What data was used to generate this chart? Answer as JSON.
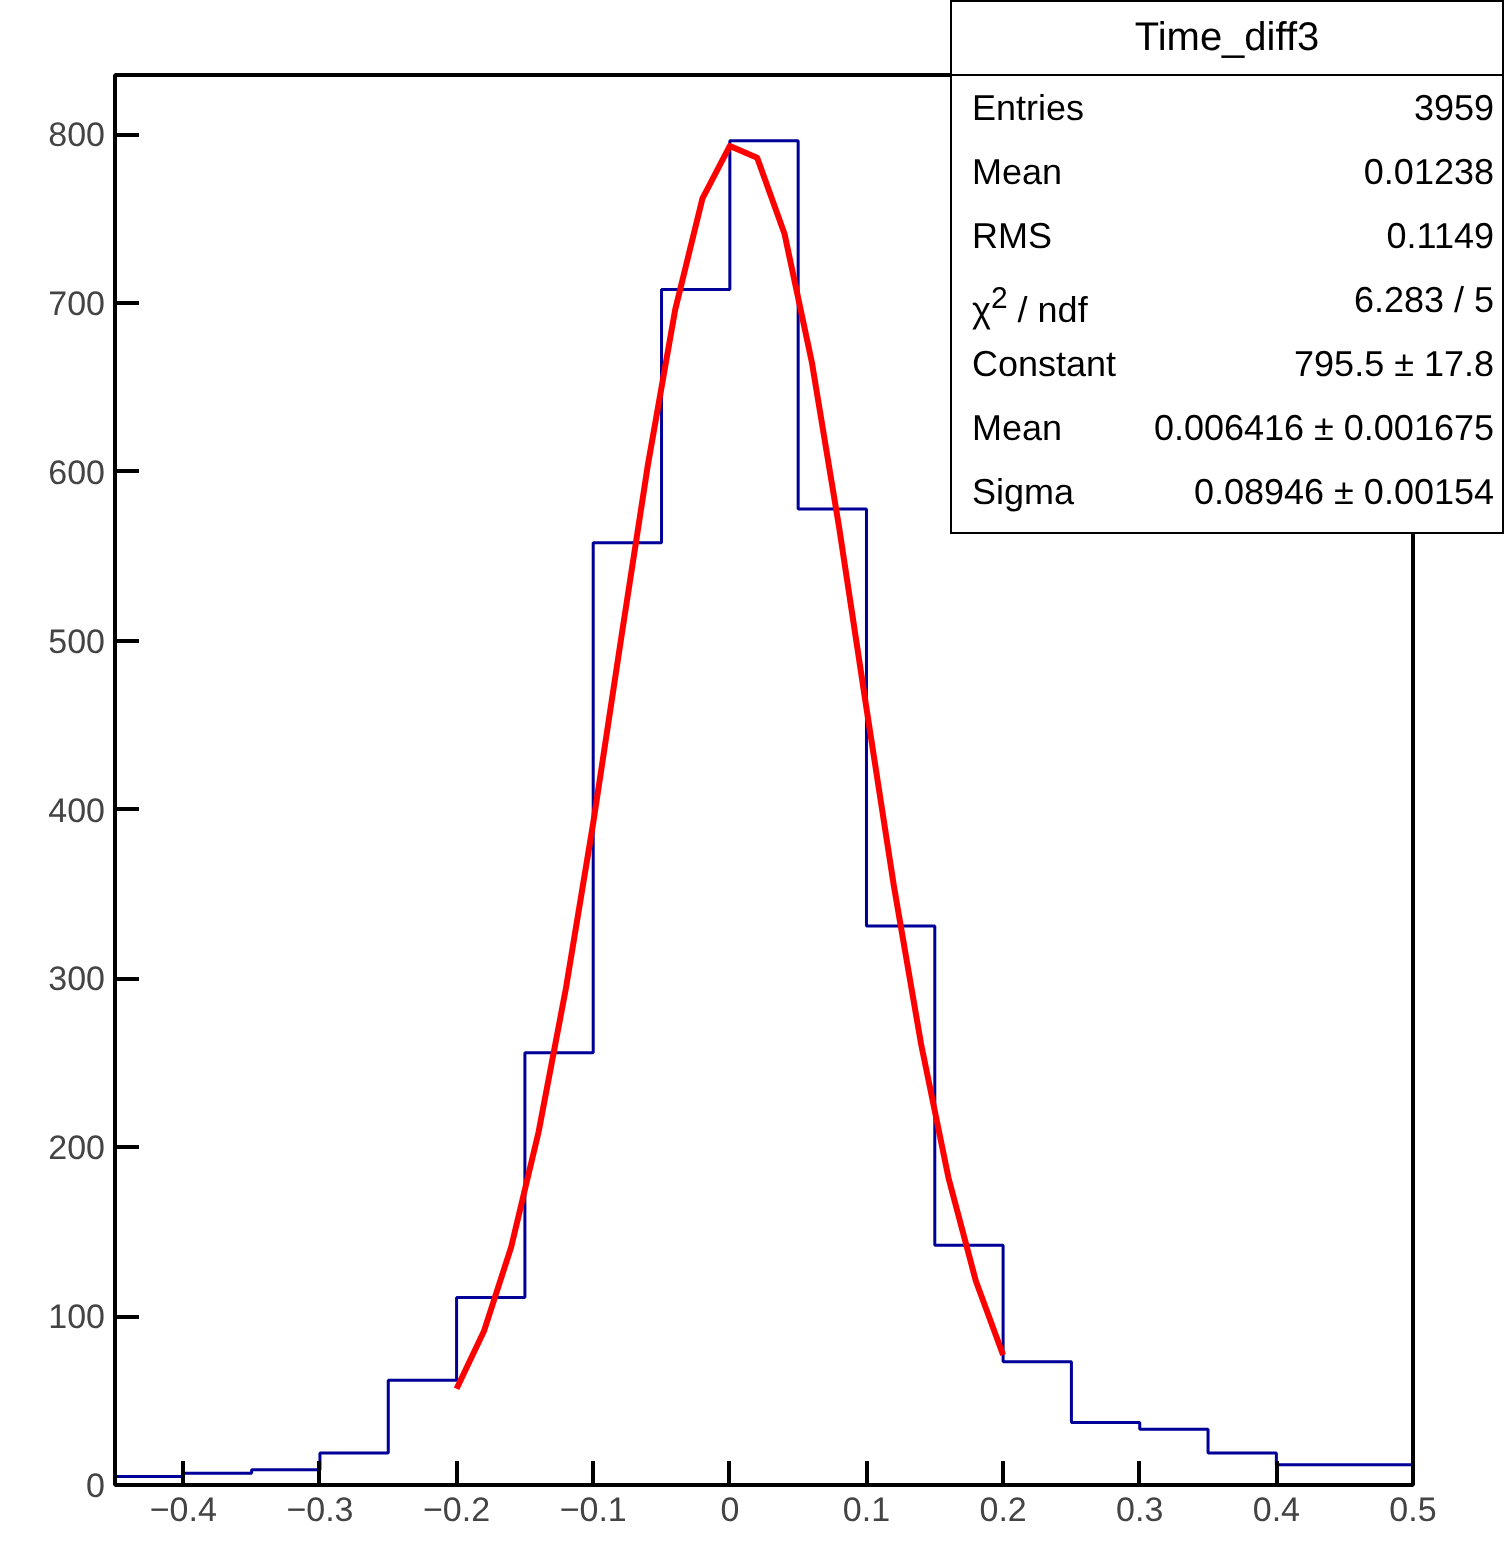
{
  "chart_data": {
    "type": "histogram",
    "title": "Time_diff3",
    "bins": [
      -0.45,
      -0.4,
      -0.35,
      -0.3,
      -0.25,
      -0.2,
      -0.15,
      -0.1,
      -0.05,
      0,
      0.05,
      0.1,
      0.15,
      0.2,
      0.25,
      0.3,
      0.35,
      0.4,
      0.45,
      0.5
    ],
    "values": [
      5,
      7,
      9,
      19,
      62,
      111,
      256,
      558,
      708,
      796,
      578,
      331,
      142,
      73,
      37,
      33,
      19,
      12,
      12
    ],
    "color": "#000099",
    "series": [
      {
        "type": "line",
        "color": "#ff0000",
        "x": [
          -0.2,
          -0.18,
          -0.16,
          -0.14,
          -0.12,
          -0.1,
          -0.08,
          -0.06,
          -0.04,
          -0.02,
          0,
          0.02,
          0.04,
          0.06,
          0.08,
          0.1,
          0.12,
          0.14,
          0.16,
          0.18,
          0.2
        ],
        "values": [
          57,
          91,
          141,
          209,
          294,
          392,
          499,
          604,
          696,
          762,
          793,
          786,
          741,
          665,
          567,
          460,
          355,
          261,
          182,
          121,
          77
        ]
      }
    ],
    "annotations": [
      "Entries",
      "3959",
      "Mean",
      "0.01238",
      "RMS",
      "0.1149",
      "χ$^{2}$ / ndf",
      "6.283 / 5",
      "Constant",
      "795.5 ± 17.8",
      "Mean",
      "0.006416 ± 0.001675",
      "Sigma",
      "0.08946 ± 0.00154"
    ],
    "xlim": [
      -0.45,
      0.5
    ],
    "ylim": [
      0,
      835
    ],
    "xticks": [
      {
        "value": -0.4,
        "label": "−0.4"
      },
      {
        "value": -0.3,
        "label": "−0.3"
      },
      {
        "value": -0.2,
        "label": "−0.2"
      },
      {
        "value": -0.1,
        "label": "−0.1"
      },
      0,
      0.1,
      0.2,
      0.3,
      0.4,
      0.5
    ],
    "yticks": [
      0,
      100,
      200,
      300,
      400,
      500,
      600,
      700,
      800
    ],
    "grid": false
  }
}
